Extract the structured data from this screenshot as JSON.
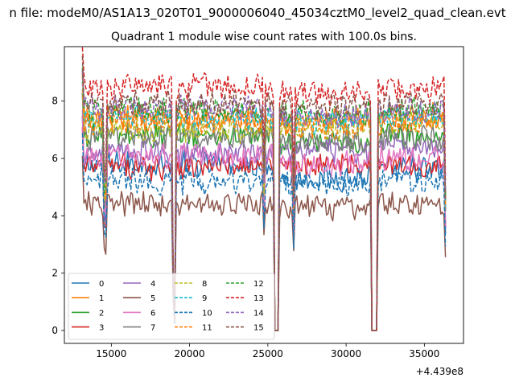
{
  "figure": {
    "suptitle": "n file: modeM0/AS1A13_020T01_9000006040_45034cztM0_level2_quad_clean.evt"
  },
  "chart_data": {
    "type": "line",
    "title": "Quadrant 1 module wise count rates with 100.0s bins.",
    "xlabel": "",
    "ylabel": "",
    "x_offset_label": "+4.439e8",
    "xlim": [
      12000,
      37500
    ],
    "ylim": [
      -0.45,
      9.9
    ],
    "x_ticks": [
      15000,
      20000,
      25000,
      30000,
      35000
    ],
    "y_ticks": [
      0,
      2,
      4,
      6,
      8
    ],
    "x_start": 13150,
    "x_end": 36350,
    "bin_width": 100,
    "gaps": [
      {
        "from": 25350,
        "to": 25750
      },
      {
        "from": 31550,
        "to": 32050
      }
    ],
    "dips": [
      {
        "x": 14600,
        "depth": 0.35
      },
      {
        "x": 18950,
        "depth": 0.75
      },
      {
        "x": 19050,
        "depth": 0.95
      },
      {
        "x": 24750,
        "depth": 0.3
      },
      {
        "x": 26650,
        "depth": 0.4
      }
    ],
    "legend_position": "lower left",
    "legend_columns": 4,
    "series": [
      {
        "name": "0",
        "color": "#1f77b4",
        "dash": "solid",
        "base": [
          5.8,
          5.3,
          5.6
        ]
      },
      {
        "name": "1",
        "color": "#ff7f0e",
        "dash": "solid",
        "base": [
          7.4,
          7.3,
          7.5
        ]
      },
      {
        "name": "2",
        "color": "#2ca02c",
        "dash": "solid",
        "base": [
          6.8,
          6.5,
          6.8
        ]
      },
      {
        "name": "3",
        "color": "#d62728",
        "dash": "solid",
        "base": [
          5.7,
          5.8,
          5.8
        ]
      },
      {
        "name": "4",
        "color": "#9467bd",
        "dash": "solid",
        "base": [
          6.2,
          6.3,
          6.4
        ]
      },
      {
        "name": "5",
        "color": "#8c564b",
        "dash": "solid",
        "base": [
          4.4,
          4.3,
          4.4
        ]
      },
      {
        "name": "6",
        "color": "#e377c2",
        "dash": "solid",
        "base": [
          6.1,
          5.8,
          6.0
        ]
      },
      {
        "name": "7",
        "color": "#7f7f7f",
        "dash": "solid",
        "base": [
          6.8,
          6.6,
          6.7
        ]
      },
      {
        "name": "8",
        "color": "#bcbd22",
        "dash": "dashed",
        "base": [
          7.0,
          7.1,
          7.3
        ]
      },
      {
        "name": "9",
        "color": "#17becf",
        "dash": "dashed",
        "base": [
          7.4,
          7.3,
          7.5
        ]
      },
      {
        "name": "10",
        "color": "#1f77b4",
        "dash": "dashed",
        "base": [
          5.2,
          5.1,
          5.2
        ]
      },
      {
        "name": "11",
        "color": "#ff7f0e",
        "dash": "dashed",
        "base": [
          7.3,
          7.1,
          7.2
        ]
      },
      {
        "name": "12",
        "color": "#2ca02c",
        "dash": "dashed",
        "base": [
          7.7,
          7.6,
          7.7
        ]
      },
      {
        "name": "13",
        "color": "#d62728",
        "dash": "dashed",
        "base": [
          8.5,
          8.3,
          8.4
        ]
      },
      {
        "name": "14",
        "color": "#9467bd",
        "dash": "dashed",
        "base": [
          7.8,
          7.5,
          7.7
        ]
      },
      {
        "name": "15",
        "color": "#8c564b",
        "dash": "dashed",
        "base": [
          7.9,
          7.8,
          7.9
        ]
      }
    ]
  }
}
